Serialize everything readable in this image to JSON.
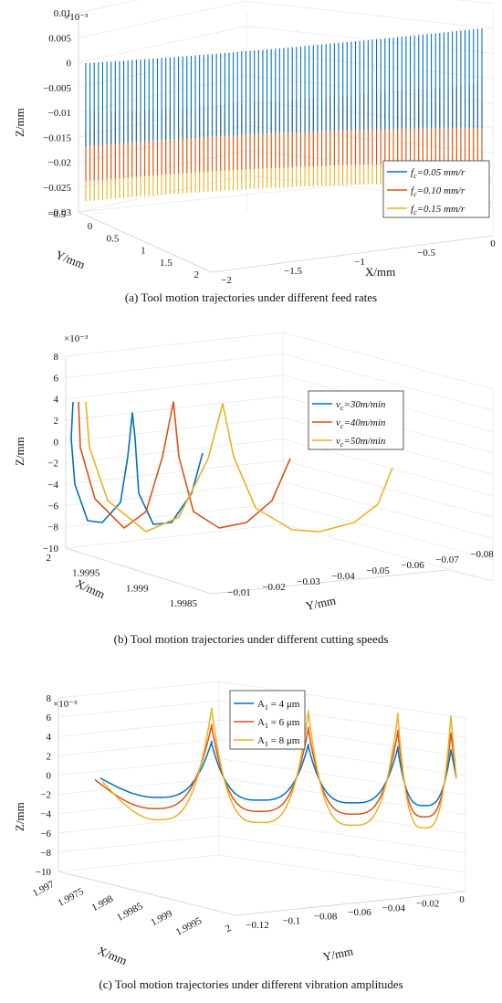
{
  "colors": {
    "blue": "#0072BD",
    "orange": "#D95319",
    "yellow": "#EDB120"
  },
  "chart_data": [
    {
      "type": "line",
      "view": "3d",
      "caption": "(a) Tool motion trajectories under different feed rates",
      "scale_label": "×10⁻³",
      "xlabel": "X/mm",
      "ylabel": "Y/mm",
      "zlabel": "Z/mm",
      "x_ticks": [
        "−2",
        "−1.5",
        "−1",
        "−0.5",
        "0"
      ],
      "y_ticks": [
        "−0.5",
        "0",
        "0.5",
        "1",
        "1.5",
        "2"
      ],
      "z_ticks": [
        "0.01",
        "0.005",
        "0",
        "−0.005",
        "−0.01",
        "−0.015",
        "−0.02",
        "−0.025",
        "−0.03"
      ],
      "xlim": [
        -2,
        0
      ],
      "ylim": [
        -0.5,
        2
      ],
      "zlim": [
        -0.03,
        0.01
      ],
      "series": [
        {
          "name": "f_c=0.05 mm/r",
          "sub": "c",
          "base": "f",
          "rest": "=0.05 mm/r",
          "color": "#0072BD",
          "z_top": 0.001,
          "z_bottom": -0.015
        },
        {
          "name": "f_c=0.10 mm/r",
          "sub": "c",
          "base": "f",
          "rest": "=0.10 mm/r",
          "color": "#D95319",
          "z_top": -0.009,
          "z_bottom": -0.022
        },
        {
          "name": "f_c=0.15 mm/r",
          "sub": "c",
          "base": "f",
          "rest": "=0.15 mm/r",
          "color": "#EDB120",
          "z_top": -0.012,
          "z_bottom": -0.026
        }
      ],
      "legend": "right"
    },
    {
      "type": "line",
      "view": "3d",
      "caption": "(b) Tool motion trajectories under different cutting speeds",
      "scale_label": "×10⁻³",
      "xlabel": "X/mm",
      "ylabel": "Y/mm",
      "zlabel": "Z/mm",
      "x_ticks": [
        "2",
        "1.9995",
        "1.999",
        "1.9985"
      ],
      "y_ticks": [
        "−0.01",
        "−0.02",
        "−0.03",
        "−0.04",
        "−0.05",
        "−0.06",
        "−0.07",
        "−0.08"
      ],
      "z_ticks": [
        "8",
        "6",
        "4",
        "2",
        "0",
        "−2",
        "−4",
        "−6",
        "−8",
        "−10"
      ],
      "zlim": [
        -10,
        8
      ],
      "series": [
        {
          "name": "v_c=30m/min",
          "sub": "c",
          "base": "v",
          "rest": "=30m/min",
          "color": "#0072BD"
        },
        {
          "name": "v_c=40m/min",
          "sub": "c",
          "base": "v",
          "rest": "=40m/min",
          "color": "#D95319"
        },
        {
          "name": "v_c=50m/min",
          "sub": "c",
          "base": "v",
          "rest": "=50m/min",
          "color": "#EDB120"
        }
      ],
      "legend": "top-right"
    },
    {
      "type": "line",
      "view": "3d",
      "caption": "(c) Tool motion trajectories under different vibration amplitudes",
      "scale_label": "×10⁻³",
      "xlabel": "X/mm",
      "ylabel": "Y/mm",
      "zlabel": "Z/mm",
      "x_ticks": [
        "1.997",
        "1.9975",
        "1.998",
        "1.9985",
        "1.999",
        "1.9995",
        "2"
      ],
      "y_ticks": [
        "−0.12",
        "−0.1",
        "−0.08",
        "−0.06",
        "−0.04",
        "−0.02",
        "0"
      ],
      "z_ticks": [
        "8",
        "6",
        "4",
        "2",
        "0",
        "−2",
        "−4",
        "−6",
        "−8",
        "−10"
      ],
      "zlim": [
        -10,
        8
      ],
      "series": [
        {
          "name": "A_1 = 4 μm",
          "sub": "1",
          "base": "A",
          "rest": " = 4 μm",
          "color": "#0072BD",
          "amp": 4
        },
        {
          "name": "A_1 = 6 μm",
          "sub": "1",
          "base": "A",
          "rest": " = 6 μm",
          "color": "#D95319",
          "amp": 6
        },
        {
          "name": "A_1 = 8 μm",
          "sub": "1",
          "base": "A",
          "rest": " = 8 μm",
          "color": "#EDB120",
          "amp": 8
        }
      ],
      "legend": "top"
    }
  ]
}
